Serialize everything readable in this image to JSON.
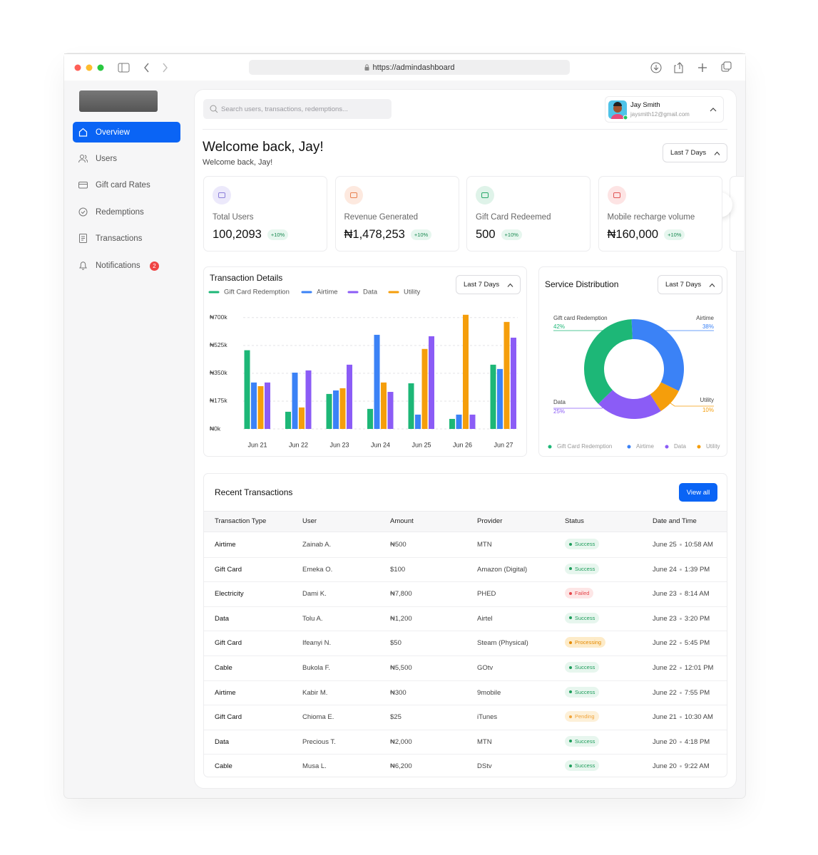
{
  "browser": {
    "url": "https://admindashboard"
  },
  "sidebar": {
    "nav": [
      "Overview",
      "Users",
      "Gift card Rates",
      "Redemptions",
      "Transactions",
      "Notifications"
    ],
    "notification_count": 2
  },
  "header": {
    "search_placeholder": "Search users, transactions, redemptions...",
    "user": {
      "name": "Jay Smith",
      "email": "jaysmith12@gmail.com"
    }
  },
  "welcome": {
    "title": "Welcome back, Jay!",
    "subtitle": "Welcome back, Jay!",
    "period": "Last 7 Days"
  },
  "stats": [
    {
      "label": "Total Users",
      "value": "100,2093",
      "change": "+10%"
    },
    {
      "label": "Revenue Generated",
      "value": "₦1,478,253",
      "change": "+10%"
    },
    {
      "label": "Gift Card Redeemed",
      "value": "500",
      "change": "+10%"
    },
    {
      "label": "Mobile recharge volume",
      "value": "₦160,000",
      "change": "+10%"
    }
  ],
  "chart_data": [
    {
      "type": "bar",
      "title": "Transaction Details",
      "filter": "Last 7 Days",
      "categories": [
        "Jun 21",
        "Jun 22",
        "Jun 23",
        "Jun 24",
        "Jun 25",
        "Jun 26",
        "Jun 27"
      ],
      "series": [
        {
          "name": "Gift Card Redemption",
          "color": "#1db777",
          "values": [
            495000,
            108000,
            220000,
            126000,
            287000,
            63000,
            404000
          ]
        },
        {
          "name": "Airtime",
          "color": "#3b82f6",
          "values": [
            292000,
            354000,
            242000,
            592000,
            90000,
            90000,
            377000
          ]
        },
        {
          "name": "Data",
          "color": "#8b5cf6",
          "values": [
            292000,
            368000,
            404000,
            233000,
            583000,
            90000,
            574000
          ]
        },
        {
          "name": "Utility",
          "color": "#f59e0b",
          "values": [
            269000,
            135000,
            256000,
            292000,
            503000,
            718000,
            673000
          ]
        }
      ],
      "ylim": [
        0,
        735000
      ],
      "yticks": [
        {
          "value": 0,
          "label": "₦0k"
        },
        {
          "value": 175000,
          "label": "₦175k"
        },
        {
          "value": 350000,
          "label": "₦350k"
        },
        {
          "value": 525000,
          "label": "₦525k"
        },
        {
          "value": 700000,
          "label": "₦700k"
        }
      ],
      "grid": true
    },
    {
      "type": "pie",
      "title": "Service Distribution",
      "filter": "Last 7 Days",
      "categories": [
        "Gift Card Redemption",
        "Airtime",
        "Data",
        "Utility"
      ],
      "callout_labels": [
        "Gift card Redemption",
        "Airtime",
        "Data",
        "Utility"
      ],
      "values": [
        42,
        38,
        25,
        10
      ],
      "value_labels": [
        "42%",
        "38%",
        "25%",
        "10%"
      ],
      "colors": [
        "#1db777",
        "#3b82f6",
        "#8b5cf6",
        "#f59e0b"
      ]
    }
  ],
  "transactions": {
    "title": "Recent Transactions",
    "action": "View all",
    "columns": [
      "Transaction Type",
      "User",
      "Amount",
      "Provider",
      "Status",
      "Date and Time"
    ],
    "rows": [
      {
        "type": "Airtime",
        "user": "Zainab A.",
        "amount": "₦500",
        "provider": "MTN",
        "status": {
          "text": "Success",
          "color": "#1f9d5c",
          "background": "#e7f6ee"
        },
        "date": "June 25",
        "time": "10:58 AM"
      },
      {
        "type": "Gift Card",
        "user": "Emeka O.",
        "amount": "$100",
        "provider": "Amazon (Digital)",
        "status": {
          "text": "Success",
          "color": "#1f9d5c",
          "background": "#e7f6ee"
        },
        "date": "June 24",
        "time": "1:39 PM"
      },
      {
        "type": "Electricity",
        "user": "Dami K.",
        "amount": "₦7,800",
        "provider": "PHED",
        "status": {
          "text": "Failed",
          "color": "#e5484d",
          "background": "#fde6e6"
        },
        "date": "June 23",
        "time": "8:14 AM"
      },
      {
        "type": "Data",
        "user": "Tolu A.",
        "amount": "₦1,200",
        "provider": "Airtel",
        "status": {
          "text": "Success",
          "color": "#1f9d5c",
          "background": "#e7f6ee"
        },
        "date": "June 23",
        "time": "3:20 PM"
      },
      {
        "type": "Gift Card",
        "user": "Ifeanyi N.",
        "amount": "$50",
        "provider": "Steam (Physical)",
        "status": {
          "text": "Processing",
          "color": "#e58a00",
          "background": "#fdebc8"
        },
        "date": "June 22",
        "time": "5:45 PM"
      },
      {
        "type": "Cable",
        "user": "Bukola F.",
        "amount": "₦5,500",
        "provider": "GOtv",
        "status": {
          "text": "Success",
          "color": "#1f9d5c",
          "background": "#e7f6ee"
        },
        "date": "June 22",
        "time": "12:01 PM"
      },
      {
        "type": "Airtime",
        "user": "Kabir M.",
        "amount": "₦300",
        "provider": "9mobile",
        "status": {
          "text": "Success",
          "color": "#1f9d5c",
          "background": "#e7f6ee"
        },
        "date": "June 22",
        "time": "7:55 PM"
      },
      {
        "type": "Gift Card",
        "user": "Chioma E.",
        "amount": "$25",
        "provider": "iTunes",
        "status": {
          "text": "Pending",
          "color": "#f0a43a",
          "background": "#fdf0d8"
        },
        "date": "June 21",
        "time": "10:30 AM"
      },
      {
        "type": "Data",
        "user": "Precious T.",
        "amount": "₦2,000",
        "provider": "MTN",
        "status": {
          "text": "Success",
          "color": "#1f9d5c",
          "background": "#e7f6ee"
        },
        "date": "June 20",
        "time": "4:18 PM"
      },
      {
        "type": "Cable",
        "user": "Musa L.",
        "amount": "₦6,200",
        "provider": "DStv",
        "status": {
          "text": "Success",
          "color": "#1f9d5c",
          "background": "#e7f6ee"
        },
        "date": "June 20",
        "time": "9:22 AM"
      }
    ]
  }
}
